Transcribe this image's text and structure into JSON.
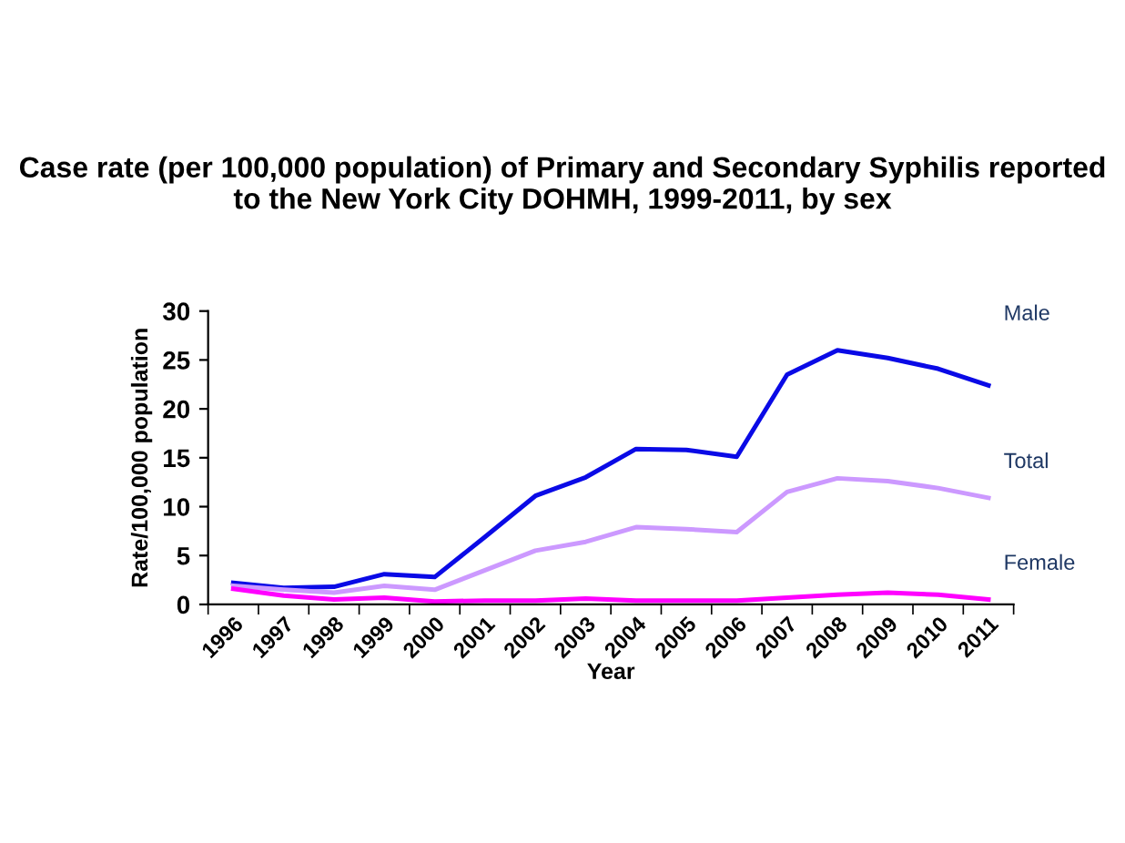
{
  "chart_data": {
    "type": "line",
    "title": "Case rate (per 100,000 population) of Primary and Secondary Syphilis reported to the New York City DOHMH, 1999-2011, by sex",
    "xlabel": "Year",
    "ylabel": "Rate/100,000 population",
    "categories": [
      "1996",
      "1997",
      "1998",
      "1999",
      "2000",
      "2001",
      "2002",
      "2003",
      "2004",
      "2005",
      "2006",
      "2007",
      "2008",
      "2009",
      "2010",
      "2011"
    ],
    "series": [
      {
        "name": "Male",
        "color": "#0a0ae6",
        "values": [
          2.2,
          1.7,
          1.8,
          3.1,
          2.8,
          6.9,
          11.1,
          13.0,
          15.9,
          15.8,
          15.1,
          23.5,
          26.0,
          25.2,
          24.1,
          22.4
        ]
      },
      {
        "name": "Total",
        "color": "#cc99ff",
        "values": [
          1.9,
          1.5,
          1.2,
          1.9,
          1.5,
          3.5,
          5.5,
          6.4,
          7.9,
          7.7,
          7.4,
          11.5,
          12.9,
          12.6,
          11.9,
          10.9
        ]
      },
      {
        "name": "Female",
        "color": "#ff00ff",
        "values": [
          1.6,
          0.9,
          0.5,
          0.7,
          0.3,
          0.4,
          0.4,
          0.6,
          0.4,
          0.4,
          0.4,
          0.7,
          1.0,
          1.2,
          1.0,
          0.5
        ]
      }
    ],
    "ylim": [
      0,
      30
    ],
    "yticks": [
      0,
      5,
      10,
      15,
      20,
      25,
      30
    ],
    "grid": false,
    "legend": false,
    "marker": "none",
    "line_style": "solid"
  }
}
